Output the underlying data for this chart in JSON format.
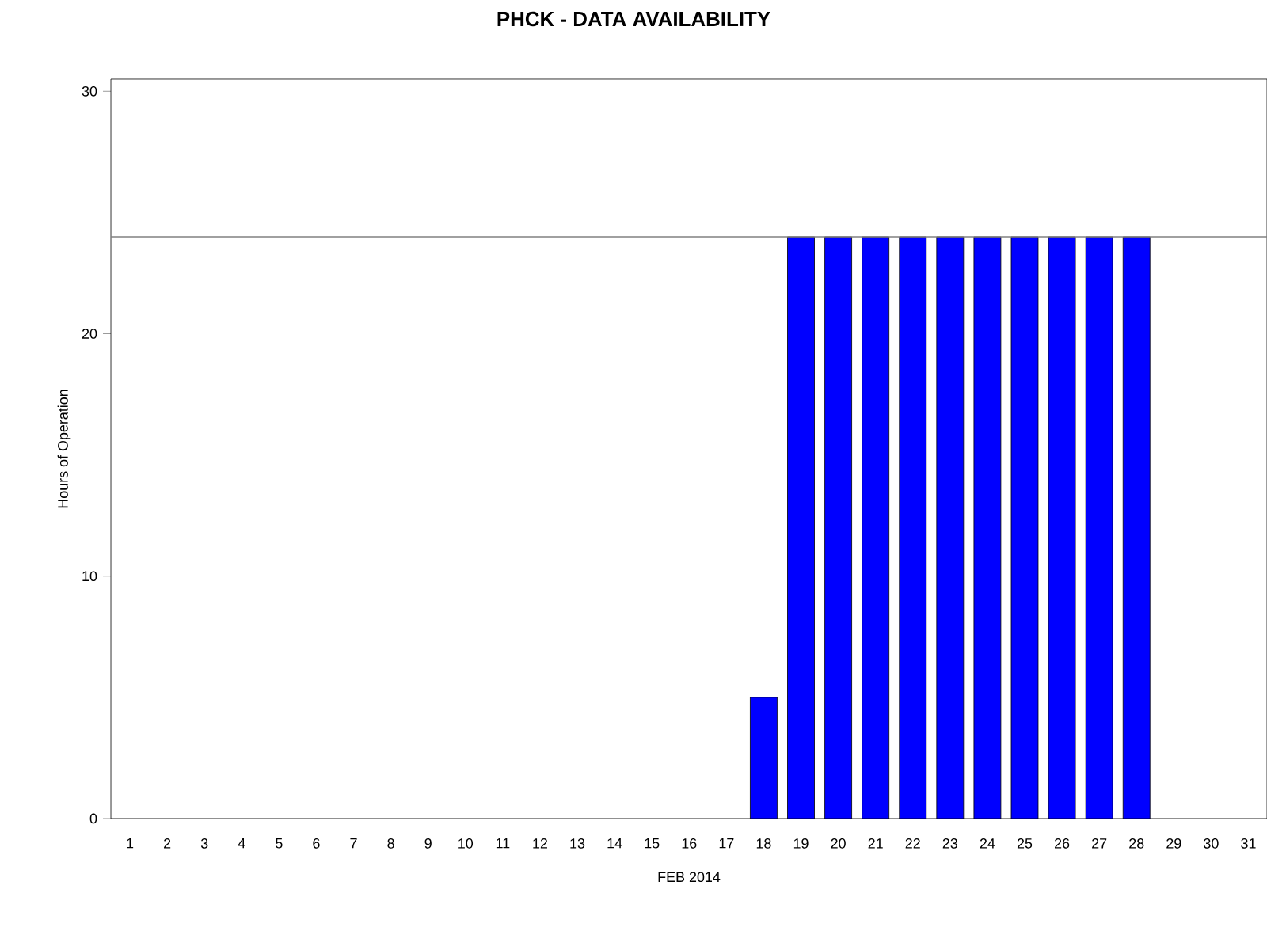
{
  "chart_data": {
    "type": "bar",
    "title": "PHCK - DATA AVAILABILITY",
    "xlabel": "FEB 2014",
    "ylabel": "Hours of Operation",
    "categories": [
      "1",
      "2",
      "3",
      "4",
      "5",
      "6",
      "7",
      "8",
      "9",
      "10",
      "11",
      "12",
      "13",
      "14",
      "15",
      "16",
      "17",
      "18",
      "19",
      "20",
      "21",
      "22",
      "23",
      "24",
      "25",
      "26",
      "27",
      "28",
      "29",
      "30",
      "31"
    ],
    "values": [
      0,
      0,
      0,
      0,
      0,
      0,
      0,
      0,
      0,
      0,
      0,
      0,
      0,
      0,
      0,
      0,
      0,
      5,
      24,
      24,
      24,
      24,
      24,
      24,
      24,
      24,
      24,
      24,
      0,
      0,
      0
    ],
    "color": "#0000ff",
    "ylim": [
      0,
      30.5
    ],
    "yticks": [
      0,
      10,
      20,
      30
    ],
    "grid": false,
    "ref_lines": [
      {
        "axis": "y",
        "value": 24,
        "color": "#808080"
      }
    ]
  }
}
